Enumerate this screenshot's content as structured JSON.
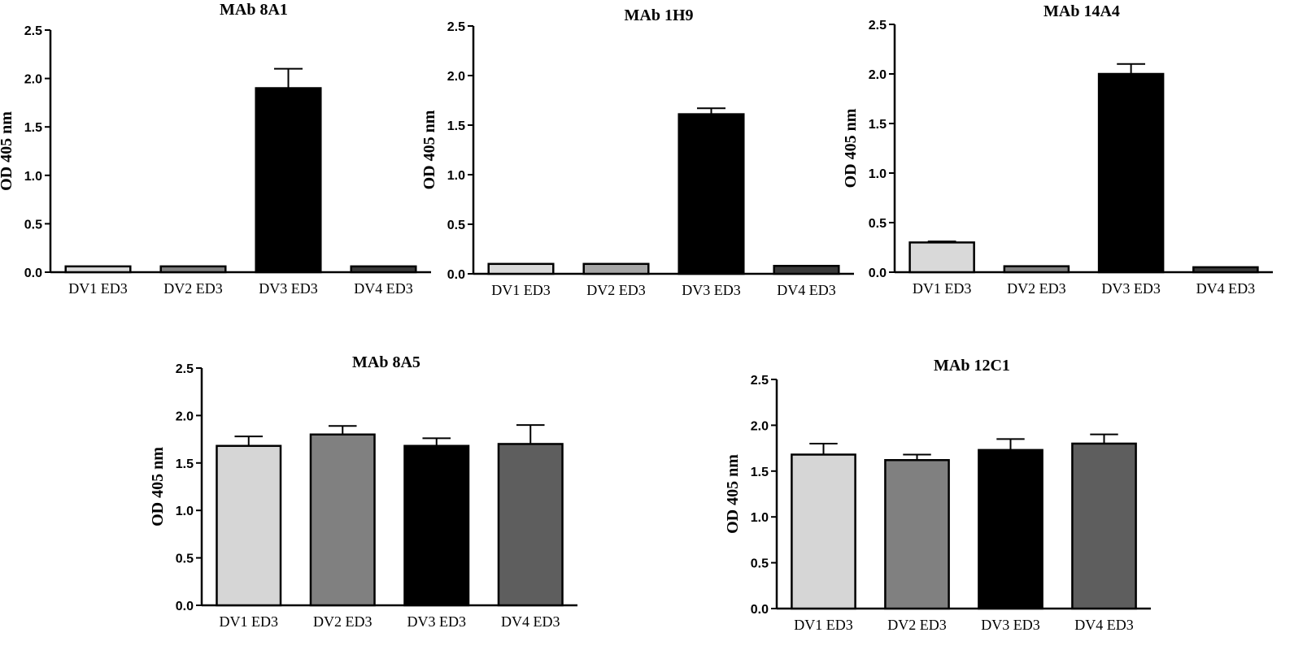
{
  "chart_data": [
    {
      "type": "bar",
      "title": "MAb 8A1",
      "ylabel": "OD 405 nm",
      "ylim": [
        0,
        2.5
      ],
      "yticks": [
        "0.0",
        "0.5",
        "1.0",
        "1.5",
        "2.0",
        "2.5"
      ],
      "categories": [
        "DV1 ED3",
        "DV2 ED3",
        "DV3 ED3",
        "DV4 ED3"
      ],
      "values": [
        0.06,
        0.06,
        1.9,
        0.06
      ],
      "errors": [
        0.0,
        0.0,
        0.2,
        0.0
      ],
      "colors": [
        "#d9d9d9",
        "#808080",
        "#000000",
        "#3a3a3a"
      ]
    },
    {
      "type": "bar",
      "title": "MAb 1H9",
      "ylabel": "OD 405 nm",
      "ylim": [
        0,
        2.5
      ],
      "yticks": [
        "0.0",
        "0.5",
        "1.0",
        "1.5",
        "2.0",
        "2.5"
      ],
      "categories": [
        "DV1 ED3",
        "DV2 ED3",
        "DV3 ED3",
        "DV4 ED3"
      ],
      "values": [
        0.1,
        0.1,
        1.61,
        0.08
      ],
      "errors": [
        0.0,
        0.0,
        0.06,
        0.0
      ],
      "colors": [
        "#d9d9d9",
        "#a6a6a6",
        "#000000",
        "#3a3a3a"
      ]
    },
    {
      "type": "bar",
      "title": "MAb 14A4",
      "ylabel": "OD 405 nm",
      "ylim": [
        0,
        2.5
      ],
      "yticks": [
        "0.0",
        "0.5",
        "1.0",
        "1.5",
        "2.0",
        "2.5"
      ],
      "categories": [
        "DV1 ED3",
        "DV2 ED3",
        "DV3 ED3",
        "DV4 ED3"
      ],
      "values": [
        0.3,
        0.06,
        2.0,
        0.05
      ],
      "errors": [
        0.01,
        0.0,
        0.1,
        0.0
      ],
      "colors": [
        "#d9d9d9",
        "#808080",
        "#000000",
        "#3a3a3a"
      ]
    },
    {
      "type": "bar",
      "title": "MAb 8A5",
      "ylabel": "OD 405 nm",
      "ylim": [
        0,
        2.5
      ],
      "yticks": [
        "0.0",
        "0.5",
        "1.0",
        "1.5",
        "2.0",
        "2.5"
      ],
      "categories": [
        "DV1 ED3",
        "DV2 ED3",
        "DV3 ED3",
        "DV4 ED3"
      ],
      "values": [
        1.68,
        1.8,
        1.68,
        1.7
      ],
      "errors": [
        0.1,
        0.09,
        0.08,
        0.2
      ],
      "colors": [
        "#d6d6d6",
        "#808080",
        "#000000",
        "#5e5e5e"
      ]
    },
    {
      "type": "bar",
      "title": "MAb 12C1",
      "ylabel": "OD 405 nm",
      "ylim": [
        0,
        2.5
      ],
      "yticks": [
        "0.0",
        "0.5",
        "1.0",
        "1.5",
        "2.0",
        "2.5"
      ],
      "categories": [
        "DV1 ED3",
        "DV2 ED3",
        "DV3 ED3",
        "DV4 ED3"
      ],
      "values": [
        1.68,
        1.62,
        1.73,
        1.8
      ],
      "errors": [
        0.12,
        0.06,
        0.12,
        0.1
      ],
      "colors": [
        "#d6d6d6",
        "#808080",
        "#000000",
        "#5e5e5e"
      ]
    }
  ]
}
